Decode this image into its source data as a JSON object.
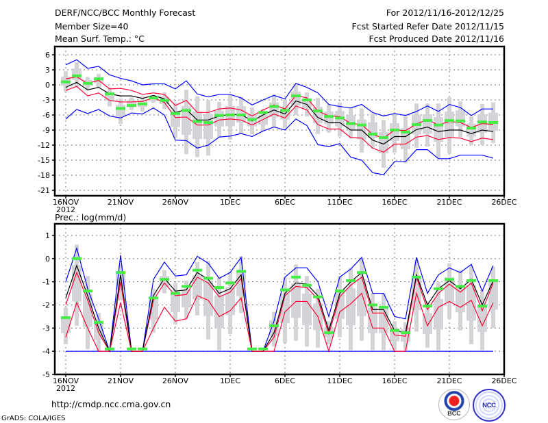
{
  "header": {
    "title": "DERF/NCC/BCC Monthly Forecast",
    "member_size": "Member Size=40",
    "period": "For 2012/11/16-2012/12/25",
    "started": "Fcst Started Refer Date 2012/11/15",
    "produced": "Fcst Produced Date 2012/11/16"
  },
  "footer": {
    "url": "http://cmdp.ncc.cma.gov.cn",
    "grads": "GrADS: COLA/IGES",
    "logo_bcc": "BCC",
    "logo_ncc": "NCC"
  },
  "colors": {
    "max_min": "#0000ff",
    "spread": "#ff0033",
    "mean": "#000000",
    "obs": "#44ee44",
    "box": "#d4d4d8"
  },
  "chart_data": [
    {
      "type": "line",
      "title": "Mean Surf. Temp.: °C",
      "xlabel": "",
      "ylabel": "",
      "x_start": "2012-11-16",
      "days": 40,
      "xticks": [
        "16NOV",
        "21NOV",
        "26NOV",
        "1DEC",
        "6DEC",
        "11DEC",
        "16DEC",
        "21DEC",
        "26DEC"
      ],
      "xtick_year": "2012",
      "yticks": [
        "6",
        "3",
        "0",
        "-3",
        "-6",
        "-9",
        "-12",
        "-15",
        "-18",
        "-21"
      ],
      "ylim": [
        -22,
        7
      ],
      "grid": true,
      "series": [
        {
          "name": "max",
          "color": "blue",
          "values": [
            4,
            5,
            3.3,
            3.7,
            2,
            1.3,
            0.8,
            0,
            0.2,
            0.2,
            -0.8,
            0.8,
            -1.8,
            -2.4,
            -1.9,
            -1.9,
            -2.6,
            -4,
            -3,
            -2.1,
            -2.8,
            0.3,
            -0.5,
            -1.6,
            -3.9,
            -4.3,
            -4.6,
            -3.9,
            -5.5,
            -6.2,
            -5.7,
            -6.1,
            -5.3,
            -4.2,
            -5.3,
            -3.9,
            -4.5,
            -6.1,
            -4.8,
            -4.8
          ]
        },
        {
          "name": "min",
          "color": "blue",
          "values": [
            -6.8,
            -4.9,
            -5.7,
            -4.9,
            -6.2,
            -6.6,
            -5.6,
            -5.8,
            -4.6,
            -6,
            -11,
            -11.1,
            -12.6,
            -12,
            -10.4,
            -10.2,
            -9.7,
            -10.3,
            -9.2,
            -8.4,
            -9,
            -6.8,
            -8.1,
            -11.9,
            -12.3,
            -11.7,
            -14.4,
            -15,
            -17.5,
            -17.9,
            -15.3,
            -15.3,
            -12.9,
            -12.9,
            -14.7,
            -14.7,
            -14,
            -14,
            -14,
            -14.6
          ]
        },
        {
          "name": "mean+sd",
          "color": "red",
          "values": [
            1.2,
            1.6,
            0.3,
            0.9,
            -0.8,
            -0.7,
            -1.1,
            -1.9,
            -1.6,
            -1.9,
            -4.1,
            -3.1,
            -5.5,
            -5.5,
            -4.8,
            -4.6,
            -5,
            -6.2,
            -5,
            -4,
            -4.8,
            -2.1,
            -2.6,
            -5.2,
            -6.2,
            -6.3,
            -7.7,
            -7.9,
            -9.9,
            -10.6,
            -9,
            -9.1,
            -7.8,
            -6.9,
            -8,
            -7.3,
            -7.5,
            -8.5,
            -7.7,
            -7.9
          ]
        },
        {
          "name": "mean",
          "color": "black",
          "values": [
            -0.5,
            0.5,
            -1,
            -0.5,
            -1.8,
            -2.2,
            -2.2,
            -2.7,
            -2.1,
            -2.8,
            -5.5,
            -4.9,
            -7,
            -7,
            -6.2,
            -5.9,
            -5.9,
            -7.2,
            -6,
            -5,
            -5.8,
            -3.2,
            -3.9,
            -6.5,
            -7.5,
            -7.5,
            -9,
            -9,
            -11,
            -11.8,
            -10.3,
            -10.3,
            -8.9,
            -8.4,
            -9.3,
            -9,
            -9,
            -9.7,
            -9,
            -9.3
          ]
        },
        {
          "name": "mean-sd",
          "color": "red",
          "values": [
            -1.1,
            -0.3,
            -2.2,
            -1.6,
            -3.1,
            -3.4,
            -3.4,
            -3.3,
            -2.6,
            -3.5,
            -6.5,
            -6.4,
            -8,
            -8,
            -7,
            -6.8,
            -7,
            -8,
            -6.9,
            -5.8,
            -6.6,
            -4.2,
            -5,
            -7.9,
            -8.8,
            -8.8,
            -10.5,
            -10.6,
            -12.6,
            -13.4,
            -11.8,
            -11.8,
            -10.4,
            -10.1,
            -10.9,
            -10.5,
            -10.6,
            -11.3,
            -10.6,
            -10.9
          ]
        },
        {
          "name": "observed",
          "color": "green",
          "values": [
            0.6,
            1.8,
            0.3,
            1.2,
            -1.8,
            -4.7,
            -4.1,
            -3.8,
            -2.6,
            -3.1,
            -5.7,
            -5.1,
            -7.3,
            -7.5,
            -6.1,
            -6,
            -6,
            -6.9,
            -5.5,
            -4.3,
            -5.1,
            -2.2,
            -3,
            -5.2,
            -6.3,
            -6.6,
            -7.7,
            -8,
            -9.8,
            -10.5,
            -9,
            -9.4,
            -7.9,
            -7.1,
            -8,
            -7.1,
            -7.2,
            -8.6,
            -7.4,
            -7.5
          ]
        }
      ],
      "ensemble_range_low": [
        -1.4,
        -0.5,
        -1,
        -0.5,
        -4.3,
        -7.8,
        -5,
        -5.3,
        -3.6,
        -4.8,
        -10.5,
        -13.8,
        -14.4,
        -14.1,
        -10.4,
        -10.9,
        -9.7,
        -9.9,
        -9.3,
        -8.4,
        -8.6,
        -6,
        -6.3,
        -9.8,
        -9.5,
        -10.3,
        -10.7,
        -13.5,
        -12.7,
        -16.5,
        -13.5,
        -15.6,
        -12.5,
        -12.3,
        -14.6,
        -13.7,
        -10.4,
        -12,
        -12,
        -11.6
      ],
      "ensemble_range_high": [
        2.7,
        4.5,
        1.6,
        2.2,
        -0.5,
        -2.7,
        -2.5,
        -2.3,
        -2.3,
        -1.5,
        -3.5,
        -1,
        -2.3,
        -3,
        -3.4,
        -2,
        -2.4,
        -4.5,
        -4.8,
        -1.9,
        -3,
        0.2,
        -1.5,
        -2.6,
        -3.9,
        -3.5,
        -4.5,
        -4.7,
        -5.7,
        -7,
        -5.7,
        -6.3,
        -3.7,
        -3.7,
        -3.7,
        -2.5,
        -3.3,
        -6.3,
        -3.8,
        -3.5
      ]
    },
    {
      "type": "line",
      "title": "Prec.: log(mm/d)",
      "xlabel": "",
      "ylabel": "",
      "x_start": "2012-11-16",
      "days": 40,
      "xticks": [
        "16NOV",
        "21NOV",
        "26NOV",
        "1DEC",
        "6DEC",
        "11DEC",
        "16DEC",
        "21DEC",
        "26DEC"
      ],
      "xtick_year": "2012",
      "yticks": [
        "1",
        "0",
        "-1",
        "-2",
        "-3",
        "-4",
        "-5"
      ],
      "ylim": [
        -5,
        1.3
      ],
      "grid": true,
      "series": [
        {
          "name": "max",
          "color": "blue",
          "values": [
            -1,
            0.45,
            -1.3,
            -2.6,
            -4,
            0.15,
            -4,
            -4,
            -0.9,
            -0.15,
            -0.75,
            -0.7,
            0.1,
            -0.2,
            -0.85,
            -0.6,
            0.05,
            -4,
            -4,
            -2.7,
            -0.8,
            -0.4,
            -0.4,
            -1,
            -2.5,
            -0.8,
            -0.45,
            0.05,
            -1.5,
            -1.5,
            -2.5,
            -2.6,
            0.05,
            -1.5,
            -0.7,
            -0.4,
            -0.6,
            -0.25,
            -1.4,
            -0.3
          ]
        },
        {
          "name": "min",
          "color": "blue",
          "values": [
            -4,
            -4,
            -4,
            -4,
            -4,
            -4,
            -4,
            -4,
            -4,
            -4,
            -4,
            -4,
            -4,
            -4,
            -4,
            -4,
            -4,
            -4,
            -4,
            -4,
            -4,
            -4,
            -4,
            -4,
            -4,
            -4,
            -4,
            -4,
            -4,
            -4,
            -4,
            -4,
            -4,
            -4,
            -4,
            -4,
            -4,
            -4,
            -4,
            -4
          ]
        },
        {
          "name": "mean+sd",
          "color": "red",
          "values": [
            -2,
            -0.6,
            -1.8,
            -3.2,
            -4,
            -1,
            -4,
            -4,
            -1.8,
            -1.05,
            -1.6,
            -1.55,
            -0.8,
            -1.05,
            -1.65,
            -1.45,
            -0.85,
            -4,
            -4,
            -3.4,
            -1.6,
            -1.2,
            -1.25,
            -1.75,
            -3.25,
            -1.65,
            -1.15,
            -0.8,
            -2.35,
            -2.35,
            -3.3,
            -3.35,
            -0.8,
            -2.2,
            -1.5,
            -1.1,
            -1.45,
            -1.05,
            -2.25,
            -1.05
          ]
        },
        {
          "name": "mean",
          "color": "black",
          "values": [
            -1.7,
            -0.3,
            -1.6,
            -3,
            -4,
            -0.7,
            -4,
            -4,
            -1.6,
            -0.85,
            -1.4,
            -1.35,
            -0.6,
            -0.9,
            -1.5,
            -1.3,
            -0.7,
            -4,
            -4,
            -3.2,
            -1.5,
            -1.05,
            -1.1,
            -1.6,
            -3.1,
            -1.5,
            -1,
            -0.6,
            -2.2,
            -2.2,
            -3.1,
            -3.2,
            -0.7,
            -2,
            -1.3,
            -0.95,
            -1.3,
            -0.9,
            -2,
            -0.95
          ]
        },
        {
          "name": "mean-sd",
          "color": "red",
          "values": [
            -3.4,
            -1.9,
            -3,
            -4,
            -4,
            -1.9,
            -4,
            -4,
            -3,
            -2.1,
            -2.7,
            -2.6,
            -1.6,
            -1.8,
            -2.5,
            -2.25,
            -1.7,
            -4,
            -4,
            -4,
            -2.3,
            -1.85,
            -1.85,
            -2.5,
            -4,
            -2.3,
            -1.95,
            -1.5,
            -3,
            -3,
            -4,
            -4,
            -1.5,
            -2.9,
            -2.1,
            -1.85,
            -2.1,
            -1.8,
            -2.9,
            -1.9
          ]
        },
        {
          "name": "observed",
          "color": "green",
          "values": [
            -2.55,
            0,
            -1.4,
            -2.75,
            -3.9,
            -0.6,
            -3.9,
            -3.9,
            -1.7,
            -0.9,
            -1.5,
            -1.2,
            -0.5,
            -0.85,
            -1.25,
            -1.05,
            -0.55,
            -3.9,
            -3.9,
            -2.9,
            -1.35,
            -0.8,
            -1.15,
            -1.65,
            -3.2,
            -1.4,
            -0.95,
            -0.6,
            -2,
            -2.1,
            -3.1,
            -3.2,
            -0.8,
            -2.05,
            -1.3,
            -0.9,
            -1.2,
            -0.95,
            -2.05,
            -0.95
          ]
        }
      ],
      "ensemble_range_low": [
        -3.7,
        -2.9,
        -3.9,
        -4,
        -4,
        -1.8,
        null,
        null,
        -3.2,
        -1.5,
        -2.85,
        -2.6,
        -2.45,
        -3.5,
        -3.95,
        -3.25,
        -2.35,
        null,
        null,
        -3.8,
        -3.65,
        -3.55,
        -3.8,
        -3.85,
        -3.7,
        -3.4,
        -3.95,
        -3.55,
        -3.95,
        -3.95,
        -3.95,
        -3.95,
        -3.15,
        -3.85,
        -3.95,
        -2.6,
        -3.1,
        -3.7,
        -3.95,
        -3
      ],
      "ensemble_range_high": [
        -2.1,
        0.6,
        -0.75,
        -2.35,
        -3.9,
        -0.25,
        null,
        null,
        -1.3,
        -0.5,
        -1.05,
        -0.95,
        -0.15,
        -0.1,
        -0.8,
        -0.55,
        0.1,
        null,
        null,
        -2.3,
        -0.8,
        -0.25,
        -0.75,
        -1.3,
        -2.7,
        -0.75,
        -0.4,
        0,
        -1.5,
        -1.5,
        -2.7,
        -2.75,
        -0.05,
        -1.85,
        -1,
        -0.2,
        -0.5,
        -0.3,
        -1.35,
        -0.35
      ]
    }
  ]
}
